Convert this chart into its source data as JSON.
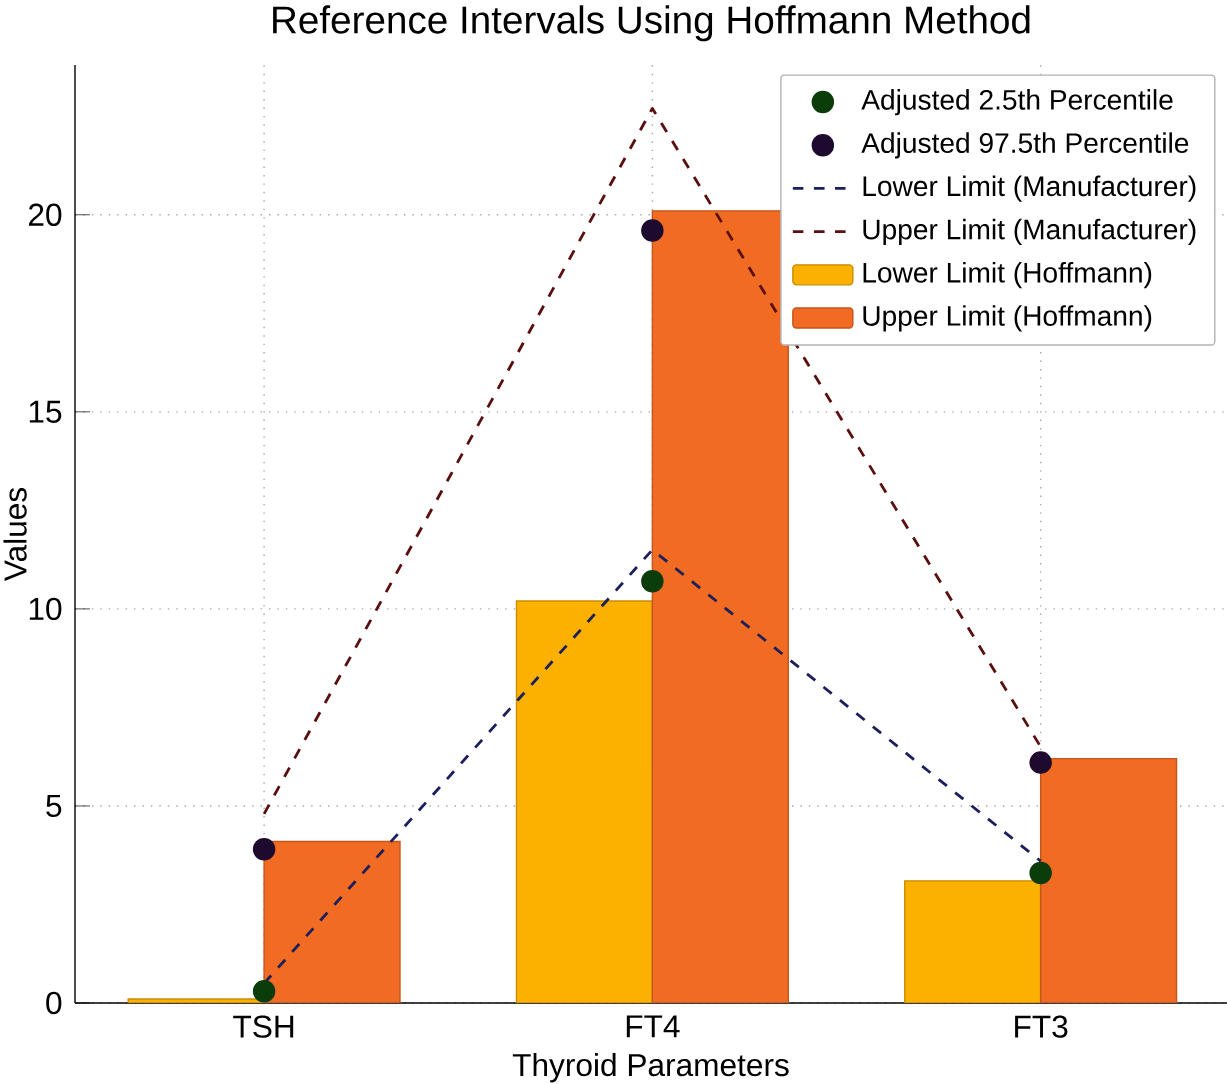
{
  "chart_data": {
    "type": "bar",
    "title": "Reference Intervals Using Hoffmann Method",
    "xlabel": "Thyroid Parameters",
    "ylabel": "Values",
    "categories": [
      "TSH",
      "FT4",
      "FT3"
    ],
    "series": [
      {
        "name": "Adjusted 2.5th Percentile",
        "type": "scatter",
        "marker": "circle",
        "color": "#0b3d0b",
        "x": [
          "TSH",
          "FT4",
          "FT3"
        ],
        "values": [
          0.3,
          10.7,
          3.3
        ]
      },
      {
        "name": "Adjusted 97.5th Percentile",
        "type": "scatter",
        "marker": "circle",
        "color": "#1e0a2e",
        "x": [
          "TSH",
          "FT4",
          "FT3"
        ],
        "values": [
          3.9,
          19.6,
          6.1
        ]
      },
      {
        "name": "Lower Limit (Manufacturer)",
        "type": "line",
        "line_style": "dashed",
        "color": "#1b1f5a",
        "values": [
          0.5,
          11.5,
          3.6
        ]
      },
      {
        "name": "Upper Limit (Manufacturer)",
        "type": "line",
        "line_style": "dashed",
        "color": "#5a0f0f",
        "values": [
          4.8,
          22.7,
          6.5
        ]
      },
      {
        "name": "Lower Limit (Hoffmann)",
        "color": "#fcb000",
        "values": [
          0.1,
          10.2,
          3.1
        ]
      },
      {
        "name": "Upper Limit (Hoffmann)",
        "color": "#f26b23",
        "values": [
          4.1,
          20.1,
          6.2
        ]
      }
    ],
    "ylim": [
      0,
      23.8
    ],
    "yticks": [
      0,
      5,
      10,
      15,
      20
    ],
    "grid": true,
    "legend": "top right"
  }
}
